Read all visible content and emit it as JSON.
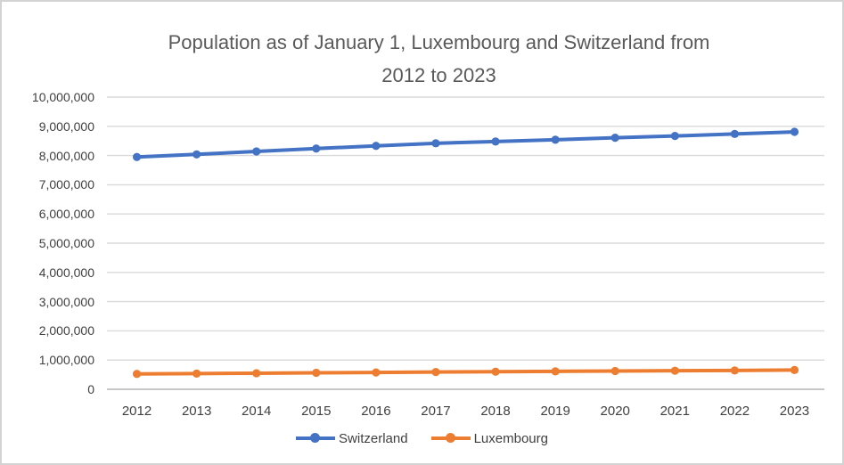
{
  "frame": {
    "background": "#ffffff",
    "border_color": "#d3d3d3"
  },
  "chart_data": {
    "type": "line",
    "title": "Population as of January 1, Luxembourg and Switzerland from 2012 to 2023",
    "title_lines": [
      "Population as of January 1, Luxembourg and Switzerland from",
      "2012 to 2023"
    ],
    "categories": [
      "2012",
      "2013",
      "2014",
      "2015",
      "2016",
      "2017",
      "2018",
      "2019",
      "2020",
      "2021",
      "2022",
      "2023"
    ],
    "series": [
      {
        "name": "Switzerland",
        "color": "#4472C4",
        "values": [
          7950000,
          8040000,
          8140000,
          8240000,
          8330000,
          8420000,
          8480000,
          8540000,
          8610000,
          8670000,
          8740000,
          8810000
        ]
      },
      {
        "name": "Luxembourg",
        "color": "#ED7D31",
        "values": [
          525000,
          537000,
          550000,
          563000,
          576000,
          591000,
          602000,
          614000,
          626000,
          635000,
          645000,
          661000
        ]
      }
    ],
    "xlabel": "",
    "ylabel": "",
    "ylim": [
      0,
      10000000
    ],
    "y_tick_step": 1000000,
    "y_tick_labels": [
      "0",
      "1,000,000",
      "2,000,000",
      "3,000,000",
      "4,000,000",
      "5,000,000",
      "6,000,000",
      "7,000,000",
      "8,000,000",
      "9,000,000",
      "10,000,000"
    ],
    "grid": true,
    "legend_position": "bottom",
    "gridline_color": "#d9d9d9",
    "axis_line_color": "#bfbfbf",
    "tick_text_color": "#404040",
    "title_color": "#595959"
  }
}
